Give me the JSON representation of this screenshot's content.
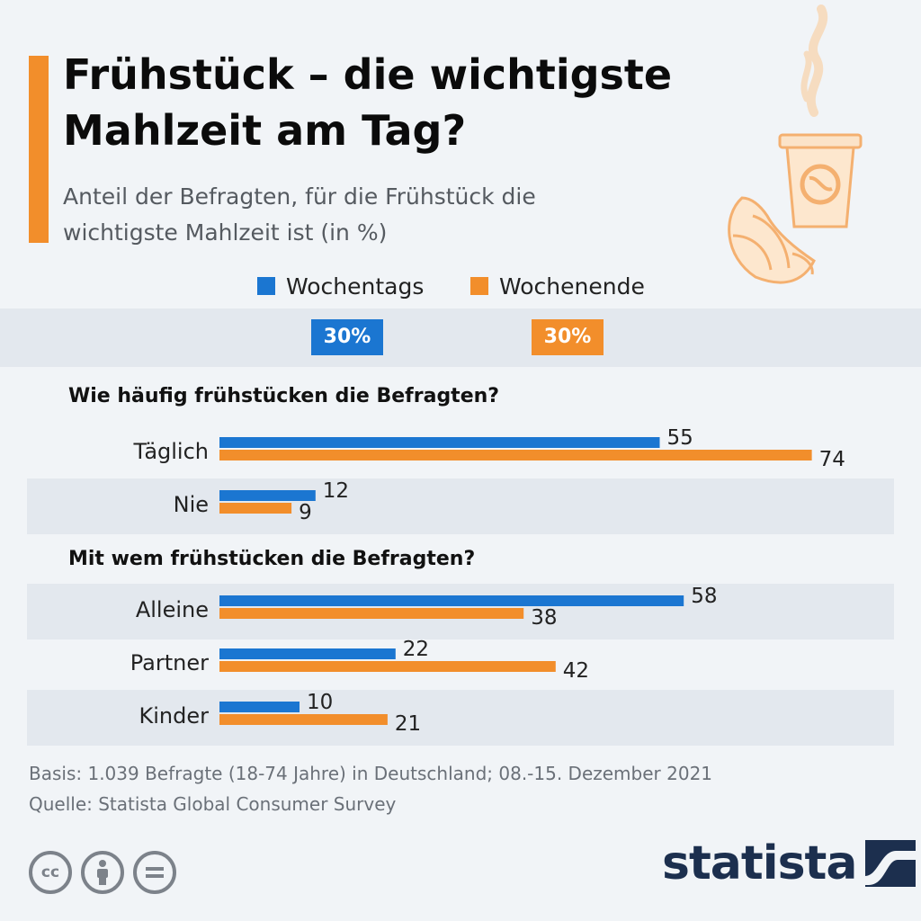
{
  "header": {
    "title": "Frühstück – die wichtigste Mahlzeit am Tag?",
    "subtitle": "Anteil der Befragten, für die Frühstück die wichtigste Mahlzeit ist (in %)"
  },
  "colors": {
    "weekday": "#1b76d1",
    "weekend": "#f28e2b",
    "accent": "#f28e2b",
    "band": "#e3e8ee",
    "brand": "#1c2f4e"
  },
  "legend": [
    {
      "label": "Wochentags",
      "color": "#1b76d1"
    },
    {
      "label": "Wochenende",
      "color": "#f28e2b"
    }
  ],
  "highlight": {
    "weekday": "30%",
    "weekend": "30%"
  },
  "chart_data": {
    "type": "bar",
    "orientation": "horizontal",
    "xlim": [
      0,
      80
    ],
    "series": [
      {
        "name": "Wochentags",
        "color": "#1b76d1"
      },
      {
        "name": "Wochenende",
        "color": "#f28e2b"
      }
    ],
    "groups": [
      {
        "title": "Wie häufig frühstücken die Befragten?",
        "categories": [
          {
            "label": "Täglich",
            "values": [
              55,
              74
            ]
          },
          {
            "label": "Nie",
            "values": [
              12,
              9
            ]
          }
        ]
      },
      {
        "title": "Mit wem frühstücken die Befragten?",
        "categories": [
          {
            "label": "Alleine",
            "values": [
              58,
              38
            ]
          },
          {
            "label": "Partner",
            "values": [
              22,
              42
            ]
          },
          {
            "label": "Kinder",
            "values": [
              10,
              21
            ]
          }
        ]
      }
    ]
  },
  "footer": {
    "basis": "Basis: 1.039 Befragte (18-74 Jahre) in Deutschland; 08.-15. Dezember 2021",
    "source": "Quelle: Statista Global Consumer Survey",
    "license_icons": [
      "cc-icon",
      "by-icon",
      "nd-icon"
    ],
    "brand": "statista"
  }
}
